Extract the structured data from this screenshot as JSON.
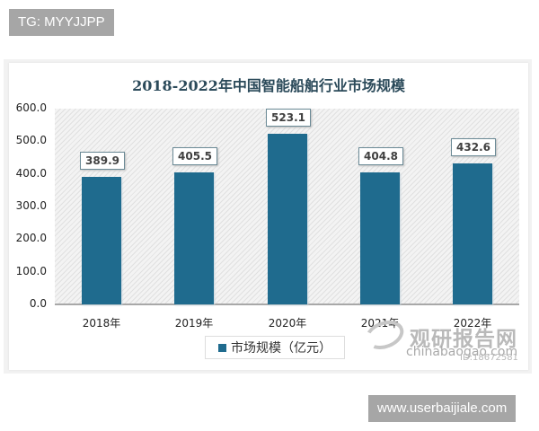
{
  "overlay": {
    "top_tag": "TG: MYYJJPP",
    "bottom_tag": "www.userbaijiale.com"
  },
  "chart": {
    "title": "2018-2022年中国智能船舶行业市场规模",
    "legend_label": "市场规模（亿元）",
    "y_ticks": [
      "600.0",
      "500.0",
      "400.0",
      "300.0",
      "200.0",
      "100.0",
      "0.0"
    ],
    "x_ticks": [
      "2018年",
      "2019年",
      "2020年",
      "2021年",
      "2022年"
    ],
    "data_labels": [
      "389.9",
      "405.5",
      "523.1",
      "404.8",
      "432.6"
    ],
    "bar_color": "#1f6b8e"
  },
  "watermark": {
    "brand": "观研报告网",
    "url": "chinabaogao.com",
    "id": "ID:18672581"
  },
  "chart_data": {
    "type": "bar",
    "title": "2018-2022年中国智能船舶行业市场规模",
    "categories": [
      "2018年",
      "2019年",
      "2020年",
      "2021年",
      "2022年"
    ],
    "series": [
      {
        "name": "市场规模（亿元）",
        "values": [
          389.9,
          405.5,
          523.1,
          404.8,
          432.6
        ]
      }
    ],
    "xlabel": "",
    "ylabel": "",
    "ylim": [
      0,
      600
    ],
    "yticks": [
      0,
      100,
      200,
      300,
      400,
      500,
      600
    ],
    "grid": false,
    "legend_position": "bottom",
    "data_labels": true
  }
}
